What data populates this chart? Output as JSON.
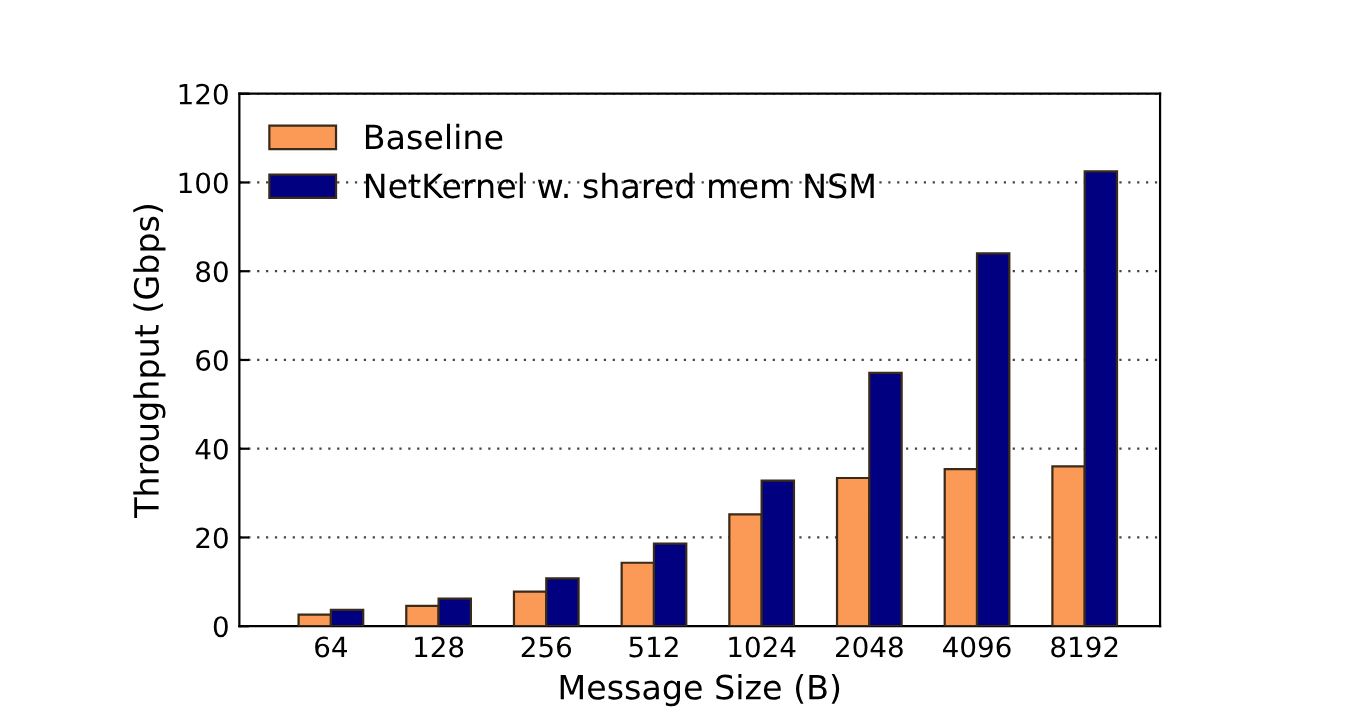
{
  "chart_data": {
    "type": "bar",
    "xlabel": "Message Size (B)",
    "ylabel": "Throughput (Gbps)",
    "categories": [
      "64",
      "128",
      "256",
      "512",
      "1024",
      "2048",
      "4096",
      "8192"
    ],
    "series": [
      {
        "name": "Baseline",
        "color": "#fb9a56",
        "values": [
          2.6,
          4.6,
          7.8,
          14.3,
          25.2,
          33.4,
          35.4,
          36.0
        ]
      },
      {
        "name": "NetKernel w. shared mem NSM",
        "color": "#000080",
        "values": [
          3.7,
          6.2,
          10.8,
          18.6,
          32.8,
          57.1,
          84.0,
          102.5
        ]
      }
    ],
    "ylim": [
      0,
      120
    ],
    "yticks": [
      0,
      20,
      40,
      60,
      80,
      100,
      120
    ],
    "grid": "y",
    "legend": "top left"
  }
}
